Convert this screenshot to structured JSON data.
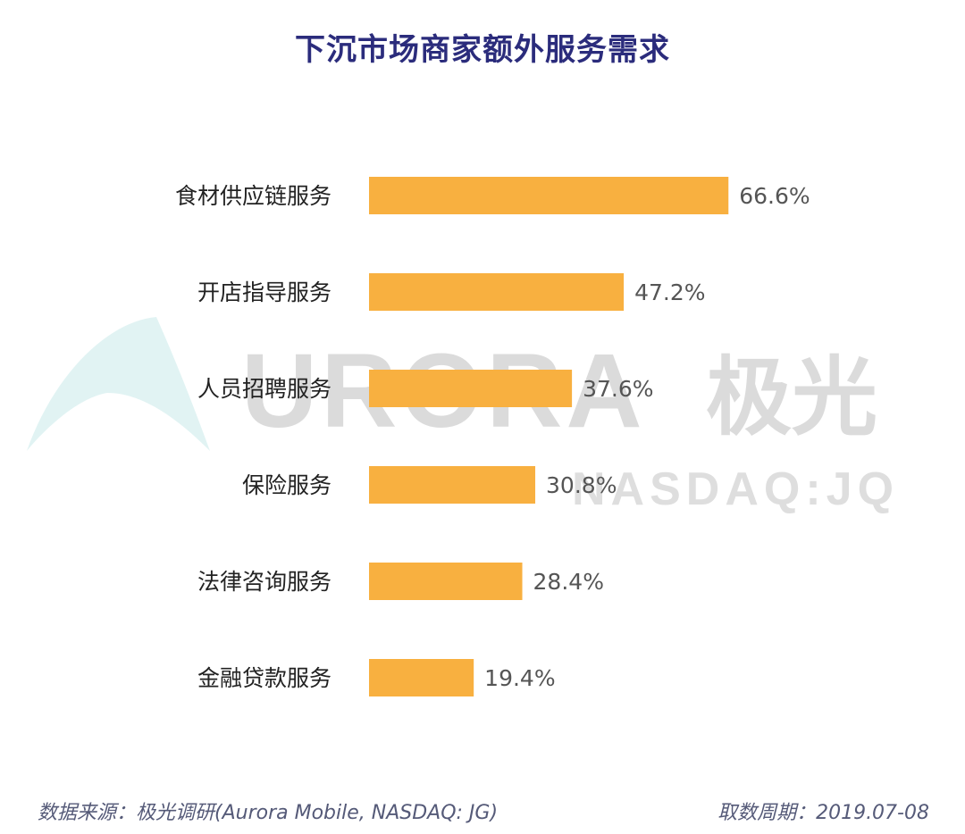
{
  "watermark": {
    "brand": "URORA",
    "brand_cn": "极光",
    "ticker": "NASDAQ:JQ"
  },
  "footer": {
    "source": "数据来源：极光调研(Aurora Mobile, NASDAQ: JG)",
    "period": "取数周期：2019.07-08"
  },
  "colors": {
    "bar": "#f8b040",
    "title": "#2b2c7c",
    "label": "#222222",
    "value": "#555555"
  },
  "chart_data": {
    "type": "bar",
    "orientation": "horizontal",
    "title": "下沉市场商家额外服务需求",
    "categories": [
      "食材供应链服务",
      "开店指导服务",
      "人员招聘服务",
      "保险服务",
      "法律咨询服务",
      "金融贷款服务"
    ],
    "values": [
      66.6,
      47.2,
      37.6,
      30.8,
      28.4,
      19.4
    ],
    "value_labels": [
      "66.6%",
      "47.2%",
      "37.6%",
      "30.8%",
      "28.4%",
      "19.4%"
    ],
    "unit": "%",
    "xlim": [
      0,
      100
    ],
    "grid": false,
    "legend": "none"
  }
}
